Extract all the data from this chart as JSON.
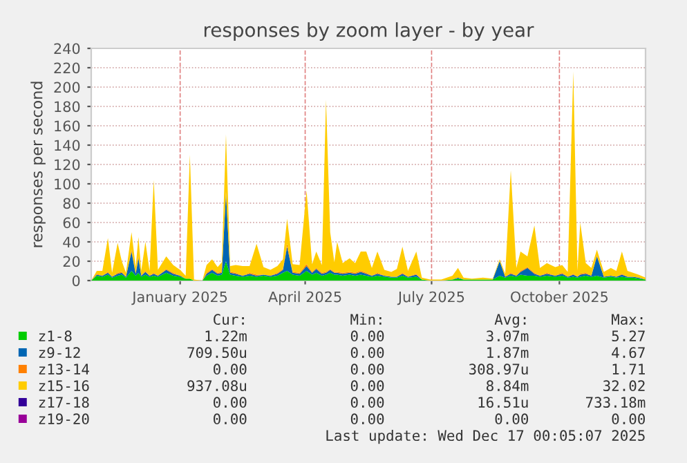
{
  "chart_data": {
    "type": "area",
    "stacked": true,
    "title": "responses by zoom layer - by year",
    "ylabel": "responses per second",
    "x": [
      "2024-11-13",
      "2024-11-17",
      "2024-11-21",
      "2024-11-25",
      "2024-11-28",
      "2024-12-02",
      "2024-12-05",
      "2024-12-08",
      "2024-12-12",
      "2024-12-15",
      "2024-12-17",
      "2024-12-19",
      "2024-12-22",
      "2024-12-25",
      "2024-12-28",
      "2024-12-31",
      "2025-01-06",
      "2025-01-11",
      "2025-01-16",
      "2025-01-20",
      "2025-01-23",
      "2025-01-26",
      "2025-02-01",
      "2025-02-04",
      "2025-02-08",
      "2025-02-12",
      "2025-02-15",
      "2025-02-18",
      "2025-02-21",
      "2025-02-25",
      "2025-03-02",
      "2025-03-07",
      "2025-03-12",
      "2025-03-17",
      "2025-03-22",
      "2025-03-27",
      "2025-03-31",
      "2025-04-03",
      "2025-04-07",
      "2025-04-12",
      "2025-04-17",
      "2025-04-21",
      "2025-04-24",
      "2025-04-28",
      "2025-05-01",
      "2025-05-04",
      "2025-05-07",
      "2025-05-09",
      "2025-05-13",
      "2025-05-18",
      "2025-05-22",
      "2025-05-26",
      "2025-05-30",
      "2025-06-03",
      "2025-06-07",
      "2025-06-12",
      "2025-06-17",
      "2025-06-21",
      "2025-06-25",
      "2025-06-29",
      "2025-07-05",
      "2025-07-09",
      "2025-07-15",
      "2025-07-23",
      "2025-07-31",
      "2025-08-04",
      "2025-08-08",
      "2025-08-14",
      "2025-08-22",
      "2025-08-29",
      "2025-09-03",
      "2025-09-07",
      "2025-09-11",
      "2025-09-15",
      "2025-09-18",
      "2025-09-23",
      "2025-09-28",
      "2025-10-02",
      "2025-10-07",
      "2025-10-13",
      "2025-10-18",
      "2025-10-22",
      "2025-10-26",
      "2025-10-29",
      "2025-10-31",
      "2025-11-04",
      "2025-11-08",
      "2025-11-12",
      "2025-11-17",
      "2025-11-22",
      "2025-11-26",
      "2025-11-30",
      "2025-12-04",
      "2025-12-08",
      "2025-12-12",
      "2025-12-17"
    ],
    "series": [
      {
        "name": "z1-8",
        "color": "#00cc00",
        "values": [
          0,
          5,
          4,
          6,
          3,
          5,
          6,
          3,
          10,
          5,
          8,
          4,
          6,
          4,
          5,
          4,
          8,
          5,
          4,
          2,
          2,
          0,
          0,
          5,
          8,
          5,
          6,
          20,
          6,
          5,
          4,
          5,
          4,
          5,
          4,
          5,
          8,
          10,
          6,
          5,
          10,
          6,
          8,
          5,
          6,
          8,
          6,
          6,
          5,
          6,
          5,
          6,
          5,
          4,
          5,
          4,
          3,
          3,
          5,
          3,
          4,
          1,
          0,
          0,
          1,
          2,
          1,
          1,
          1,
          1,
          5,
          3,
          5,
          4,
          6,
          5,
          5,
          4,
          5,
          4,
          5,
          3,
          4,
          3,
          4,
          5,
          4,
          5,
          3,
          4,
          3,
          4,
          3,
          3,
          2,
          1
        ]
      },
      {
        "name": "z9-12",
        "color": "#0066b3",
        "values": [
          0,
          1,
          1,
          2,
          1,
          2,
          2,
          1,
          20,
          2,
          15,
          1,
          3,
          1,
          2,
          1,
          3,
          2,
          1,
          0,
          0,
          0,
          0,
          2,
          3,
          2,
          2,
          70,
          2,
          2,
          1,
          2,
          1,
          1,
          1,
          2,
          3,
          25,
          2,
          2,
          5,
          2,
          4,
          2,
          2,
          3,
          2,
          2,
          2,
          2,
          2,
          3,
          2,
          1,
          2,
          1,
          1,
          1,
          2,
          1,
          2,
          0,
          0,
          0,
          0,
          1,
          0,
          0,
          0,
          0,
          15,
          1,
          2,
          1,
          3,
          8,
          2,
          1,
          2,
          1,
          2,
          1,
          2,
          1,
          2,
          2,
          1,
          20,
          1,
          1,
          1,
          2,
          1,
          1,
          1,
          0
        ]
      },
      {
        "name": "z13-14",
        "color": "#ff8000",
        "values": [
          0,
          1,
          0,
          1,
          0,
          1,
          1,
          0,
          2,
          1,
          2,
          0,
          1,
          0,
          1,
          0,
          1,
          1,
          0,
          0,
          0,
          0,
          0,
          1,
          1,
          1,
          1,
          2,
          1,
          1,
          0,
          1,
          1,
          0,
          0,
          1,
          1,
          3,
          1,
          1,
          2,
          1,
          1,
          1,
          1,
          1,
          1,
          1,
          1,
          1,
          1,
          1,
          1,
          0,
          1,
          0,
          0,
          0,
          1,
          0,
          1,
          0,
          0,
          0,
          0,
          0,
          0,
          0,
          0,
          0,
          0,
          0,
          1,
          0,
          1,
          1,
          1,
          0,
          1,
          0,
          1,
          0,
          1,
          0,
          1,
          1,
          0,
          1,
          0,
          0,
          0,
          1,
          0,
          0,
          0,
          0
        ]
      },
      {
        "name": "z15-16",
        "color": "#ffcc00",
        "values": [
          0,
          3,
          5,
          35,
          4,
          31,
          11,
          4,
          18,
          6,
          20,
          5,
          30,
          5,
          96,
          6,
          13,
          8,
          6,
          3,
          128,
          1,
          0,
          8,
          10,
          6,
          10,
          59,
          6,
          8,
          10,
          7,
          32,
          8,
          6,
          7,
          10,
          26,
          8,
          8,
          76,
          8,
          17,
          8,
          178,
          38,
          10,
          31,
          10,
          14,
          10,
          20,
          22,
          8,
          22,
          6,
          5,
          8,
          27,
          6,
          23,
          2,
          1,
          1,
          4,
          10,
          2,
          1,
          2,
          1,
          2,
          3,
          106,
          8,
          20,
          11,
          49,
          8,
          10,
          9,
          8,
          5,
          209,
          6,
          53,
          10,
          8,
          6,
          5,
          8,
          6,
          23,
          6,
          4,
          3,
          2
        ]
      },
      {
        "name": "z17-18",
        "color": "#330099",
        "values": [
          null,
          null,
          null,
          null,
          null,
          null,
          null,
          null,
          null,
          null,
          null,
          null,
          null,
          null,
          null,
          null,
          null,
          null,
          null,
          null,
          null,
          null,
          null,
          null,
          null,
          null,
          null,
          null,
          null,
          null,
          null,
          null,
          null,
          null,
          null,
          null,
          null,
          null,
          null,
          null,
          null,
          null,
          null,
          null,
          null,
          null,
          null,
          null,
          null,
          null,
          null,
          null,
          null,
          null,
          null,
          null,
          null,
          null,
          null,
          null,
          null,
          null,
          null,
          null,
          null,
          null,
          null,
          null,
          null,
          null,
          null,
          null,
          null,
          null,
          null,
          null,
          null,
          null,
          null,
          null,
          null,
          null,
          null,
          null,
          null,
          null,
          null,
          null,
          null,
          null,
          null,
          null,
          null,
          null,
          null,
          null
        ]
      },
      {
        "name": "z19-20",
        "color": "#990099",
        "values": [
          null,
          null,
          null,
          null,
          null,
          null,
          null,
          null,
          null,
          null,
          null,
          null,
          null,
          null,
          null,
          null,
          null,
          null,
          null,
          null,
          null,
          null,
          null,
          null,
          null,
          null,
          null,
          null,
          null,
          null,
          null,
          null,
          null,
          null,
          null,
          null,
          null,
          null,
          null,
          null,
          null,
          null,
          null,
          null,
          null,
          null,
          null,
          null,
          null,
          null,
          null,
          null,
          null,
          null,
          null,
          null,
          null,
          null,
          null,
          null,
          null,
          null,
          null,
          null,
          null,
          null,
          null,
          null,
          null,
          null,
          null,
          null,
          null,
          null,
          null,
          null,
          null,
          null,
          null,
          null,
          null,
          null,
          null,
          null,
          null,
          null,
          null,
          null,
          null,
          null,
          null,
          null,
          null,
          null,
          null,
          null
        ]
      }
    ],
    "xlim": [
      "2024-11-13",
      "2025-12-17"
    ],
    "xticks": [
      {
        "value": "2025-01-16",
        "label": "January 2025"
      },
      {
        "value": "2025-04-16",
        "label": "April 2025"
      },
      {
        "value": "2025-07-16",
        "label": "July 2025"
      },
      {
        "value": "2025-10-16",
        "label": "October 2025"
      }
    ],
    "ylim": [
      0,
      240
    ],
    "yticks": [
      0,
      20,
      40,
      60,
      80,
      100,
      120,
      140,
      160,
      180,
      200,
      220,
      240
    ],
    "grid": true,
    "legend": "bottom",
    "annotations": [
      "Cur:",
      "Min:",
      "Avg:",
      "Max:",
      "1.22m",
      "0.00",
      "3.07m",
      "5.27",
      "709.50u",
      "0.00",
      "1.87m",
      "4.67",
      "0.00",
      "0.00",
      "308.97u",
      "1.71",
      "937.08u",
      "0.00",
      "8.84m",
      "32.02",
      "0.00",
      "0.00",
      "16.51u",
      "733.18m",
      "0.00",
      "0.00",
      "0.00",
      "0.00",
      "Last update: Wed Dec 17 00:05:07 2025"
    ]
  }
}
